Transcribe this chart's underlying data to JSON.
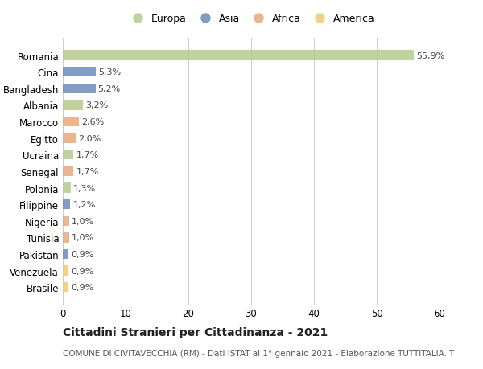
{
  "categories": [
    "Romania",
    "Cina",
    "Bangladesh",
    "Albania",
    "Marocco",
    "Egitto",
    "Ucraina",
    "Senegal",
    "Polonia",
    "Filippine",
    "Nigeria",
    "Tunisia",
    "Pakistan",
    "Venezuela",
    "Brasile"
  ],
  "values": [
    55.9,
    5.3,
    5.2,
    3.2,
    2.6,
    2.0,
    1.7,
    1.7,
    1.3,
    1.2,
    1.0,
    1.0,
    0.9,
    0.9,
    0.9
  ],
  "labels": [
    "55,9%",
    "5,3%",
    "5,2%",
    "3,2%",
    "2,6%",
    "2,0%",
    "1,7%",
    "1,7%",
    "1,3%",
    "1,2%",
    "1,0%",
    "1,0%",
    "0,9%",
    "0,9%",
    "0,9%"
  ],
  "continents": [
    "Europa",
    "Asia",
    "Asia",
    "Europa",
    "Africa",
    "Africa",
    "Europa",
    "Africa",
    "Europa",
    "Asia",
    "Africa",
    "Africa",
    "Asia",
    "America",
    "America"
  ],
  "continent_colors": {
    "Europa": "#b5cc8e",
    "Asia": "#6b8cba",
    "Africa": "#e8a87c",
    "America": "#f0cc6e"
  },
  "legend_order": [
    "Europa",
    "Asia",
    "Africa",
    "America"
  ],
  "xlim": [
    0,
    60
  ],
  "xticks": [
    0,
    10,
    20,
    30,
    40,
    50,
    60
  ],
  "title": "Cittadini Stranieri per Cittadinanza - 2021",
  "subtitle": "COMUNE DI CIVITAVECCHIA (RM) - Dati ISTAT al 1° gennaio 2021 - Elaborazione TUTTITALIA.IT",
  "background_color": "#ffffff",
  "grid_color": "#cccccc",
  "bar_height": 0.6,
  "label_fontsize": 8,
  "tick_fontsize": 8.5,
  "title_fontsize": 10,
  "subtitle_fontsize": 7.5
}
